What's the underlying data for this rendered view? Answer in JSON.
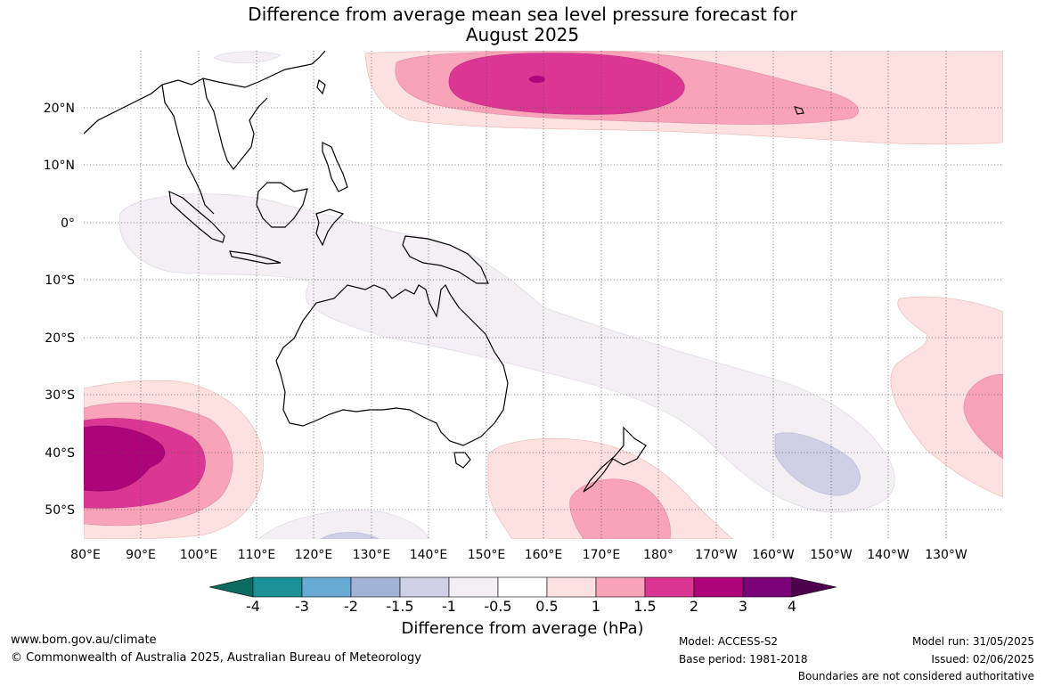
{
  "title_line1": "Difference from average mean sea level pressure forecast for",
  "title_line2": "August 2025",
  "lat_ticks": [
    "20°N",
    "10°N",
    "0°",
    "10°S",
    "20°S",
    "30°S",
    "40°S",
    "50°S"
  ],
  "lon_ticks": [
    "80°E",
    "90°E",
    "100°E",
    "110°E",
    "120°E",
    "130°E",
    "140°E",
    "150°E",
    "160°E",
    "170°E",
    "180°",
    "170°W",
    "160°W",
    "150°W",
    "140°W",
    "130°W"
  ],
  "colorbar": {
    "labels": [
      "-4",
      "-3",
      "-2",
      "-1.5",
      "-1",
      "-0.5",
      "0.5",
      "1",
      "1.5",
      "2",
      "3",
      "4"
    ],
    "colors": [
      "#0b6b5e",
      "#1a9196",
      "#67aad4",
      "#a2b4d6",
      "#cfd0e5",
      "#f3eff5",
      "#ffffff",
      "#fde0e0",
      "#f9a3bb",
      "#dc3694",
      "#ad0479",
      "#7a0177",
      "#4d004b"
    ],
    "title": "Difference from average (hPa)"
  },
  "footer": {
    "website": "www.bom.gov.au/climate",
    "copyright": "© Commonwealth of Australia 2025, Australian Bureau of Meteorology",
    "model": "Model: ACCESS-S2",
    "base_period": "Base period: 1981-2018",
    "model_run": "Model run: 31/05/2025",
    "issued": "Issued: 02/06/2025",
    "disclaimer": "Boundaries are not considered authoritative"
  }
}
